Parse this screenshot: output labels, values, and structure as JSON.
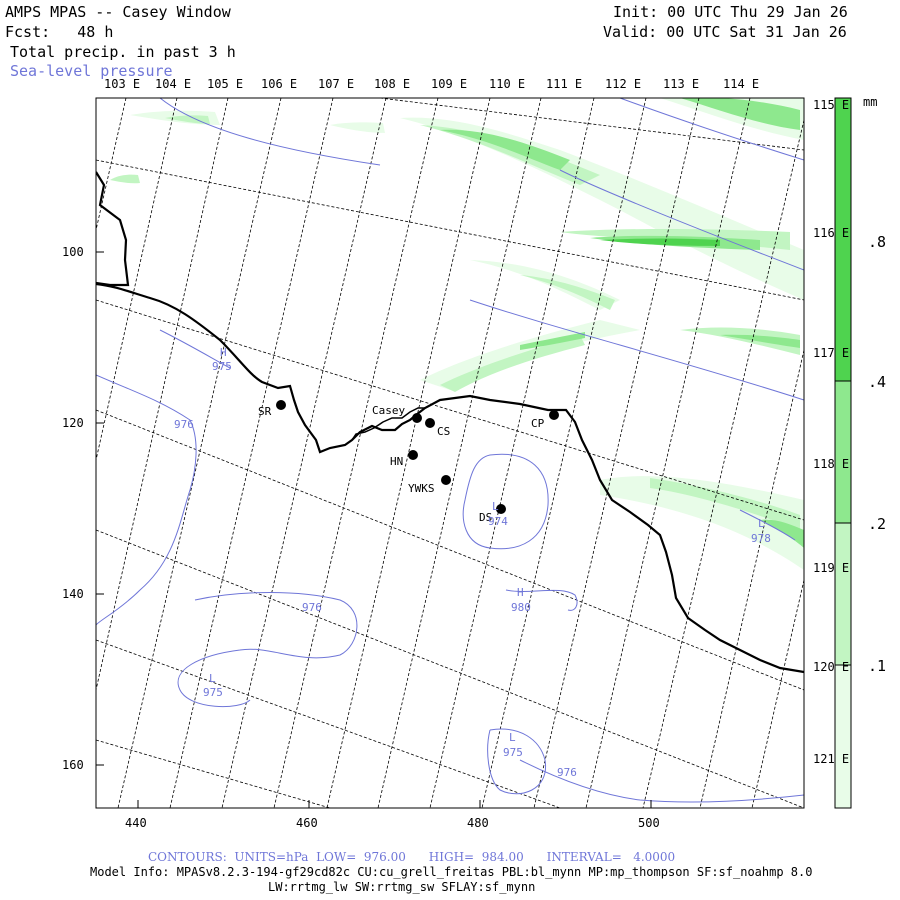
{
  "header": {
    "title": "AMPS MPAS -- Casey Window",
    "forecast_label": "Fcst:   48 h",
    "field": "Total precip. in past 3 h",
    "overlay": "Sea-level pressure",
    "init": "Init: 00 UTC Thu 29 Jan 26",
    "valid": "Valid: 00 UTC Sat 31 Jan 26"
  },
  "lon_top": [
    "103 E",
    "104 E",
    "105 E",
    "106 E",
    "107 E",
    "108 E",
    "109 E",
    "110 E",
    "111 E",
    "112 E",
    "113 E",
    "114 E"
  ],
  "lon_right": [
    "115 E",
    "116 E",
    "117 E",
    "118 E",
    "119 E",
    "120 E",
    "121 E"
  ],
  "x_ticks": [
    "440",
    "460",
    "480",
    "500"
  ],
  "y_ticks": [
    "100",
    "120",
    "140",
    "160"
  ],
  "colorbar": {
    "unit": "mm",
    "labels": [
      ".8",
      ".4",
      ".2",
      ".1"
    ],
    "colors": [
      "#4fd34f",
      "#8ee88e",
      "#c2f5c2",
      "#e8fce8"
    ]
  },
  "stations": [
    {
      "code": "SR"
    },
    {
      "code": "Casey"
    },
    {
      "code": "CS"
    },
    {
      "code": "HN"
    },
    {
      "code": "YWKS"
    },
    {
      "code": "DS"
    },
    {
      "code": "CP"
    }
  ],
  "pressure_labels": [
    {
      "letter": "H",
      "value": "975"
    },
    {
      "letter": "",
      "value": "976"
    },
    {
      "letter": "",
      "value": "976"
    },
    {
      "letter": "L",
      "value": "975"
    },
    {
      "letter": "L",
      "value": "974"
    },
    {
      "letter": "H",
      "value": "980"
    },
    {
      "letter": "L",
      "value": "975"
    },
    {
      "letter": "",
      "value": "976"
    },
    {
      "letter": "L",
      "value": "978"
    }
  ],
  "footer": {
    "contours": "CONTOURS:  UNITS=hPa  LOW=  976.00      HIGH=  984.00      INTERVAL=   4.0000",
    "model_info": "Model Info: MPASv8.2.3-194-gf29cd82c CU:cu_grell_freitas PBL:bl_mynn MP:mp_thompson SF:sf_noahmp 8.0",
    "model_info2": "LW:rrtmg_lw SW:rrtmg_sw SFLAY:sf_mynn"
  },
  "colors": {
    "contour": "#6f76d8",
    "coast": "#000000"
  }
}
